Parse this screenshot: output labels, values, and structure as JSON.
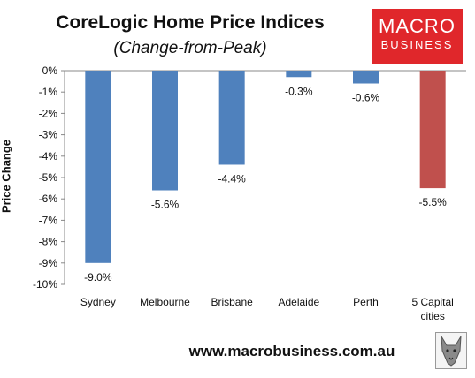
{
  "header": {
    "title": "CoreLogic Home Price Indices",
    "subtitle": "(Change-from-Peak)"
  },
  "logo": {
    "line1": "MACRO",
    "line2": "BUSINESS",
    "color": "#e0272b"
  },
  "footer": {
    "url": "www.macrobusiness.com.au"
  },
  "icons": {
    "watermark": "wolf-icon"
  },
  "colors": {
    "bar": "#4f81bd",
    "highlight": "#c0504d"
  },
  "chart_data": {
    "type": "bar",
    "title": "CoreLogic Home Price Indices",
    "subtitle": "(Change-from-Peak)",
    "ylabel": "Price Change",
    "xlabel": "",
    "categories": [
      "Sydney",
      "Melbourne",
      "Brisbane",
      "Adelaide",
      "Perth",
      "5 Capital cities"
    ],
    "values": [
      -9.0,
      -5.6,
      -4.4,
      -0.3,
      -0.6,
      -5.5
    ],
    "data_labels": [
      "-9.0%",
      "-5.6%",
      "-4.4%",
      "-0.3%",
      "-0.6%",
      "-5.5%"
    ],
    "highlight_category": "5 Capital cities",
    "ylim": [
      -10,
      0
    ],
    "yticks": [
      "0%",
      "-1%",
      "-2%",
      "-3%",
      "-4%",
      "-5%",
      "-6%",
      "-7%",
      "-8%",
      "-9%",
      "-10%"
    ],
    "grid": false,
    "legend": "none"
  }
}
